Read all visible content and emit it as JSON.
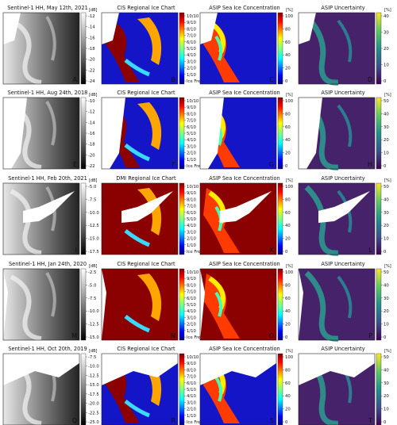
{
  "figure": {
    "rows": [
      {
        "titles": [
          "Sentinel-1 HH, May 12th, 2021",
          "CIS Regional Ice Chart",
          "ASIP Sea Ice Concentration",
          "ASIP Uncertainty"
        ],
        "letters": [
          "A",
          "B",
          "C",
          "D"
        ],
        "sar_ticks": [
          "-12",
          "-14",
          "-16",
          "-18",
          "-20",
          "-22",
          "-24"
        ],
        "unc_ticks": [
          "40",
          "30",
          "20",
          "10",
          "0"
        ]
      },
      {
        "titles": [
          "Sentinel-1 HH, Aug 24th, 2018",
          "CIS Regional Ice Chart",
          "ASIP Sea Ice Concentration",
          "ASIP Uncertainty"
        ],
        "letters": [
          "E",
          "F",
          "G",
          "H"
        ],
        "sar_ticks": [
          "-10",
          "-12",
          "-14",
          "-16",
          "-18",
          "-20",
          "-22"
        ],
        "unc_ticks": [
          "50",
          "40",
          "30",
          "20",
          "10",
          "0"
        ]
      },
      {
        "titles": [
          "Sentinel-1 HH, Feb 20th, 2021",
          "DMI Regional Ice Chart",
          "ASIP Sea Ice Concentration",
          "ASIP Uncertainty"
        ],
        "letters": [
          "I",
          "J",
          "K",
          "L"
        ],
        "sar_ticks": [
          "-5.0",
          "-7.5",
          "-10.0",
          "-12.5",
          "-15.0",
          "-17.5"
        ],
        "unc_ticks": [
          "50",
          "40",
          "30",
          "20",
          "10",
          "0"
        ]
      },
      {
        "titles": [
          "Sentinel-1 HH, Jan 24th, 2020",
          "CIS Regional Ice Chart",
          "ASIP Sea Ice Concentration",
          "ASIP Uncertainty"
        ],
        "letters": [
          "M",
          "N",
          "O",
          "P"
        ],
        "sar_ticks": [
          "-2.5",
          "-5.0",
          "-7.5",
          "-10.0",
          "-12.5",
          "-15.0"
        ],
        "unc_ticks": [
          "50",
          "40",
          "30",
          "20",
          "10",
          "0"
        ]
      },
      {
        "titles": [
          "Sentinel-1 HH, Oct 20th, 2019",
          "CIS Regional Ice Chart",
          "ASIP Sea Ice Concentration",
          "ASIP Uncertainty"
        ],
        "letters": [
          "Q",
          "R",
          "S",
          "T"
        ],
        "sar_ticks": [
          "-7.5",
          "-10.0",
          "-12.5",
          "-15.0",
          "-17.5",
          "-20.0",
          "-22.5",
          "-25.0"
        ],
        "unc_ticks": [
          "50",
          "40",
          "30",
          "20",
          "10",
          "0"
        ]
      }
    ],
    "units": {
      "sar": "[dB]",
      "percent": "[%]"
    },
    "chart_ticks": [
      "10/10",
      "9/10",
      "8/10",
      "7/10",
      "6/10",
      "5/10",
      "4/10",
      "3/10",
      "2/10",
      "1/10",
      "Ice Free"
    ],
    "sic_ticks": [
      "100",
      "80",
      "60",
      "40",
      "20",
      "0"
    ],
    "colors": {
      "water": "#1515c8",
      "ice": "#8b0000",
      "uncertainty_low": "#3b0a5a",
      "uncertainty_high": "#fde725",
      "land": "#ffffff"
    }
  }
}
